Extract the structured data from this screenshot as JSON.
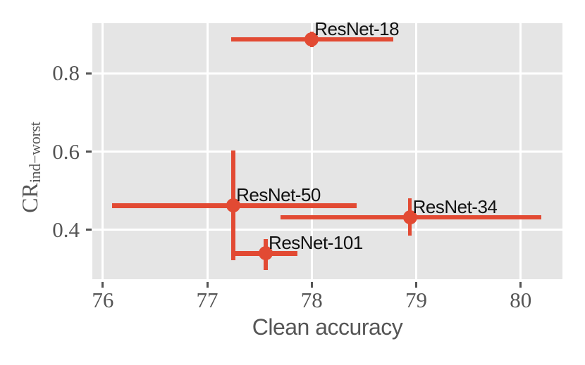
{
  "figure": {
    "xlabel": "Clean accuracy",
    "ylabel_main": "CR",
    "ylabel_sub": "ind−worst"
  },
  "chart_data": {
    "type": "scatter",
    "title": "",
    "xlabel": "Clean accuracy",
    "ylabel": "CR_{ind−worst}",
    "xlim": [
      75.9,
      80.4
    ],
    "ylim": [
      0.274,
      0.928
    ],
    "x_ticks": [
      76,
      77,
      78,
      79,
      80
    ],
    "y_ticks": [
      0.4,
      0.6,
      0.8
    ],
    "grid": true,
    "legend": false,
    "style": {
      "point_color": "#E24A33",
      "plot_bg": "#E5E5E5",
      "grid_color": "#FFFFFF",
      "tick_color": "#555555",
      "tick_label_color": "#555555",
      "annotation_color": "#111111",
      "figure_bg": "#FFFFFF"
    },
    "series": [
      {
        "name": "ResNet-18",
        "x": 78.0,
        "y": 0.887,
        "xerr": [
          0.77,
          0.78
        ],
        "yerr": [
          0.02,
          0.02
        ]
      },
      {
        "name": "ResNet-50",
        "x": 77.25,
        "y": 0.462,
        "xerr": [
          1.16,
          1.18
        ],
        "yerr": [
          0.14,
          0.14
        ]
      },
      {
        "name": "ResNet-101",
        "x": 77.56,
        "y": 0.34,
        "xerr": [
          0.29,
          0.3
        ],
        "yerr": [
          0.042,
          0.036
        ]
      },
      {
        "name": "ResNet-34",
        "x": 78.94,
        "y": 0.432,
        "xerr": [
          1.24,
          1.26
        ],
        "yerr": [
          0.047,
          0.048
        ]
      }
    ]
  }
}
